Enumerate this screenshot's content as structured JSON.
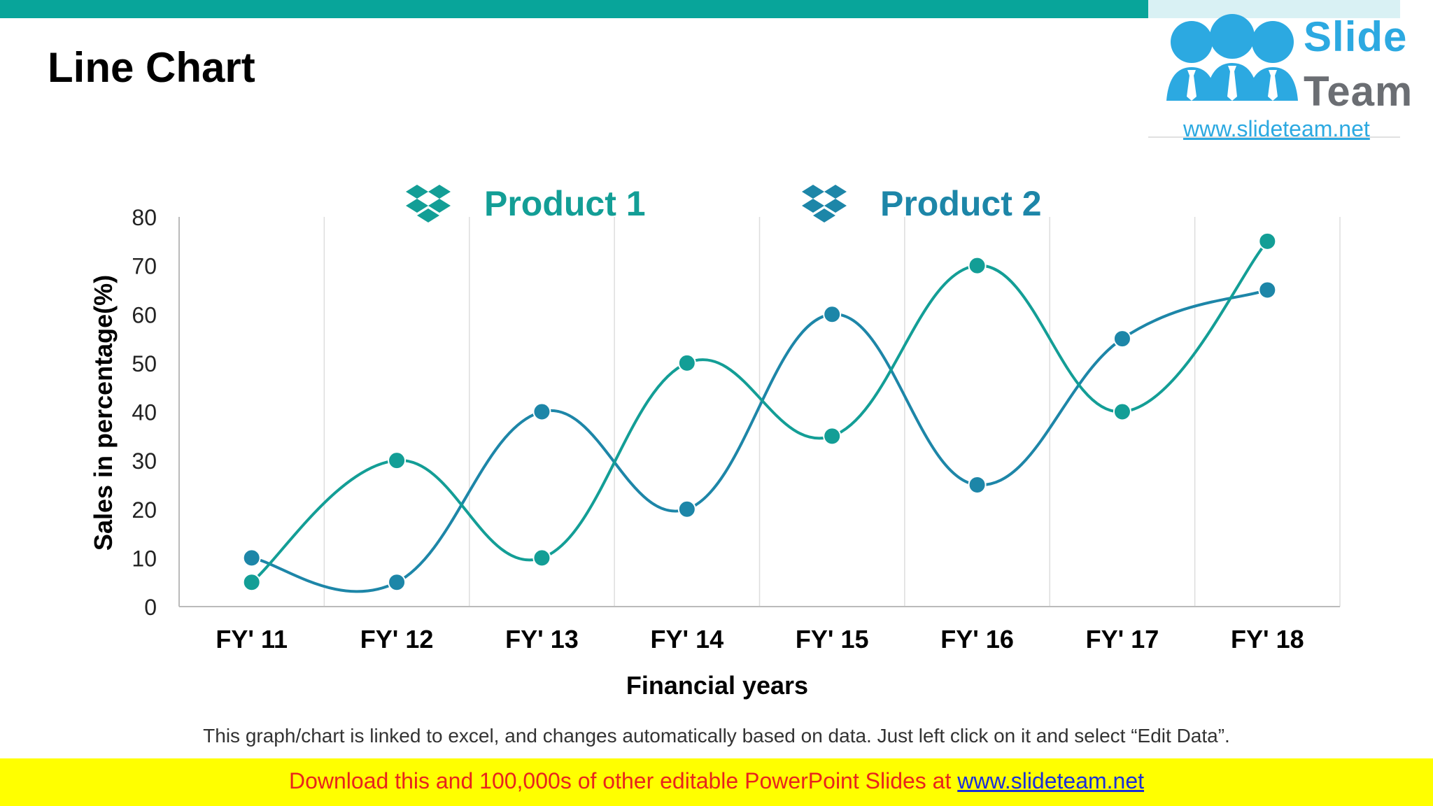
{
  "slide": {
    "title": "Line Chart",
    "caption": "This graph/chart is linked to excel, and changes automatically based on data. Just left click on it and select “Edit Data”.",
    "footer_text": "Download this and 100,000s of other editable PowerPoint Slides at ",
    "footer_link": "www.slideteam.net"
  },
  "logo": {
    "word1": "Slide",
    "word2": "Team",
    "url": "www.slideteam.net"
  },
  "colors": {
    "top_bar": "#08a59a",
    "product1": "#139e96",
    "product2": "#1d86a8",
    "grid": "#dddddd",
    "axis": "#bbbbbb"
  },
  "chart_data": {
    "type": "line",
    "smooth": true,
    "xlabel": "Financial years",
    "ylabel": "Sales in percentage(%)",
    "ylim": [
      0,
      80
    ],
    "yticks": [
      0,
      10,
      20,
      30,
      40,
      50,
      60,
      70,
      80
    ],
    "categories": [
      "FY' 11",
      "FY' 12",
      "FY' 13",
      "FY' 14",
      "FY' 15",
      "FY' 16",
      "FY' 17",
      "FY' 18"
    ],
    "grid": "vertical",
    "legend_position": "top",
    "legend_icon": "dropbox-icon",
    "series": [
      {
        "name": "Product 1",
        "color": "#139e96",
        "values": [
          5,
          30,
          10,
          50,
          35,
          70,
          40,
          75
        ]
      },
      {
        "name": "Product 2",
        "color": "#1d86a8",
        "values": [
          10,
          5,
          40,
          20,
          60,
          25,
          55,
          65
        ]
      }
    ]
  }
}
